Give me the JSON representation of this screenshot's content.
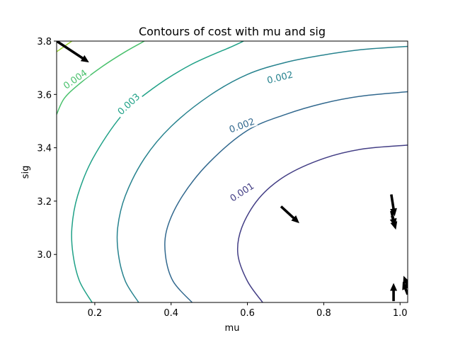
{
  "chart_data": {
    "type": "contour",
    "title": "Contours of cost with mu and sig",
    "xlabel": "mu",
    "ylabel": "sig",
    "xlim": [
      0.1,
      1.02
    ],
    "ylim": [
      2.82,
      3.8
    ],
    "xticks": [
      0.2,
      0.4,
      0.6,
      0.8,
      1.0
    ],
    "xtick_labels": [
      "0.2",
      "0.4",
      "0.6",
      "0.8",
      "1.0"
    ],
    "yticks": [
      3.0,
      3.2,
      3.4,
      3.6,
      3.8
    ],
    "ytick_labels": [
      "3.0",
      "3.2",
      "3.4",
      "3.6",
      "3.8"
    ],
    "grid": false,
    "levels": [
      {
        "name": "level-1",
        "label": "0.001",
        "color": "#433e85",
        "label_at": {
          "x": 0.585,
          "y": 3.235
        },
        "label_angle": -33,
        "points": [
          [
            0.64,
            2.82
          ],
          [
            0.6,
            2.9
          ],
          [
            0.575,
            3.0
          ],
          [
            0.585,
            3.1
          ],
          [
            0.63,
            3.21
          ],
          [
            0.7,
            3.295
          ],
          [
            0.8,
            3.36
          ],
          [
            0.9,
            3.395
          ],
          [
            1.02,
            3.41
          ]
        ]
      },
      {
        "name": "level-2",
        "label": "0.002",
        "color": "#31688e",
        "label_at": {
          "x": 0.585,
          "y": 3.485
        },
        "label_angle": -20,
        "points": [
          [
            0.455,
            2.82
          ],
          [
            0.405,
            2.9
          ],
          [
            0.385,
            3.0
          ],
          [
            0.39,
            3.1
          ],
          [
            0.43,
            3.22
          ],
          [
            0.5,
            3.345
          ],
          [
            0.6,
            3.465
          ],
          [
            0.7,
            3.525
          ],
          [
            0.8,
            3.567
          ],
          [
            0.9,
            3.594
          ],
          [
            1.02,
            3.61
          ]
        ]
      },
      {
        "name": "level-3",
        "label": "0.002",
        "color": "#26828e",
        "label_at": {
          "x": 0.685,
          "y": 3.665
        },
        "label_angle": -14,
        "points": [
          [
            0.315,
            2.82
          ],
          [
            0.28,
            2.9
          ],
          [
            0.262,
            3.0
          ],
          [
            0.26,
            3.1
          ],
          [
            0.28,
            3.22
          ],
          [
            0.33,
            3.36
          ],
          [
            0.4,
            3.48
          ],
          [
            0.5,
            3.595
          ],
          [
            0.6,
            3.675
          ],
          [
            0.7,
            3.72
          ],
          [
            0.8,
            3.748
          ],
          [
            0.9,
            3.768
          ],
          [
            1.02,
            3.78
          ]
        ]
      },
      {
        "name": "level-4",
        "label": "0.003",
        "color": "#1fa187",
        "label_at": {
          "x": 0.288,
          "y": 3.565
        },
        "label_angle": -43,
        "points": [
          [
            0.193,
            2.82
          ],
          [
            0.16,
            2.9
          ],
          [
            0.143,
            3.0
          ],
          [
            0.14,
            3.1
          ],
          [
            0.155,
            3.22
          ],
          [
            0.195,
            3.36
          ],
          [
            0.27,
            3.52
          ],
          [
            0.35,
            3.62
          ],
          [
            0.45,
            3.71
          ],
          [
            0.56,
            3.78
          ],
          [
            0.59,
            3.8
          ]
        ]
      },
      {
        "name": "level-5",
        "label": "0.004",
        "color": "#4ac16d",
        "label_at": {
          "x": 0.148,
          "y": 3.658
        },
        "label_angle": -35,
        "points": [
          [
            0.1,
            3.525
          ],
          [
            0.12,
            3.585
          ],
          [
            0.16,
            3.64
          ],
          [
            0.22,
            3.705
          ],
          [
            0.28,
            3.76
          ],
          [
            0.33,
            3.8
          ]
        ]
      },
      {
        "name": "level-6",
        "label": "",
        "color": "#a0da39",
        "label_at": null,
        "label_angle": 0,
        "points": [
          [
            0.1,
            3.76
          ],
          [
            0.13,
            3.79
          ],
          [
            0.14,
            3.8
          ]
        ]
      }
    ],
    "arrows": [
      {
        "x": 0.1,
        "y": 3.8,
        "u": 0.085,
        "v": -0.08
      },
      {
        "x": 0.688,
        "y": 3.18,
        "u": 0.048,
        "v": -0.063
      },
      {
        "x": 0.977,
        "y": 3.225,
        "u": 0.009,
        "v": -0.082
      },
      {
        "x": 0.977,
        "y": 3.163,
        "u": 0.01,
        "v": -0.058
      },
      {
        "x": 0.979,
        "y": 3.145,
        "u": 0.01,
        "v": -0.052
      },
      {
        "x": 0.983,
        "y": 2.825,
        "u": 0.0,
        "v": 0.068
      },
      {
        "x": 1.02,
        "y": 2.85,
        "u": -0.013,
        "v": 0.048
      },
      {
        "x": 1.02,
        "y": 2.88,
        "u": -0.011,
        "v": 0.04
      }
    ]
  }
}
